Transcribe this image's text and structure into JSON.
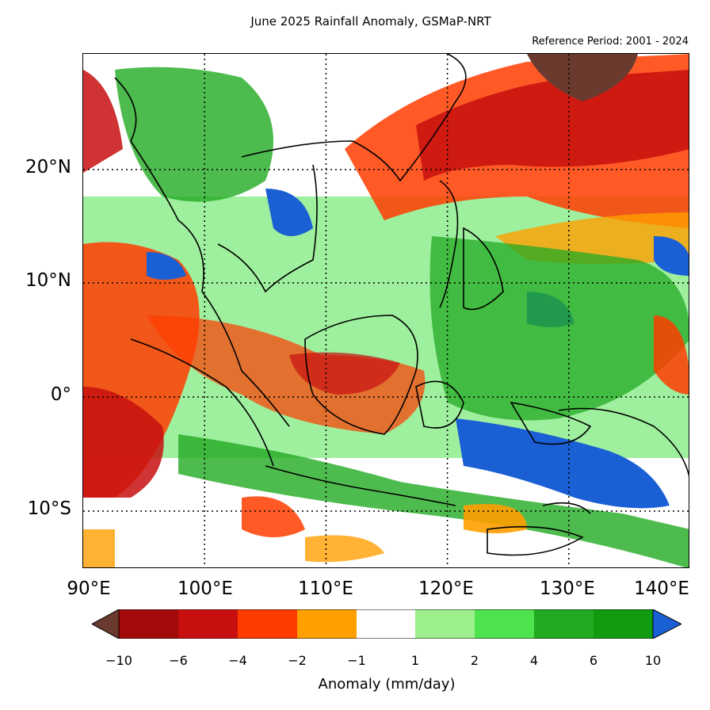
{
  "header": {
    "title": "June 2025 Rainfall Anomaly, GSMaP-NRT",
    "reference": "Reference Period: 2001 - 2024"
  },
  "map": {
    "lat_labels": [
      "20°N",
      "10°N",
      "0°",
      "10°S"
    ],
    "lon_labels": [
      "90°E",
      "100°E",
      "110°E",
      "120°E",
      "130°E",
      "140°E"
    ],
    "region": "Southeast Asia",
    "extent": {
      "lon_min": 90,
      "lon_max": 140,
      "lat_min": -15,
      "lat_max": 30
    }
  },
  "colorbar": {
    "label": "Anomaly (mm/day)",
    "ticks": [
      "−10",
      "−6",
      "−4",
      "−2",
      "−1",
      "1",
      "2",
      "4",
      "6",
      "10"
    ],
    "colors": {
      "under": "#6b3a2e",
      "lt_-10_-6": "#a30a0a",
      "lt_-6_-4": "#c70f0f",
      "lt_-4_-2": "#ff3c00",
      "lt_-2_-1": "#ff9f00",
      "neutral": "#ffffff",
      "gt_1_2": "#9cf08c",
      "gt_2_4": "#4fe24f",
      "gt_4_6": "#22aa22",
      "gt_6_10": "#119b11",
      "over": "#1a5fd4"
    }
  }
}
